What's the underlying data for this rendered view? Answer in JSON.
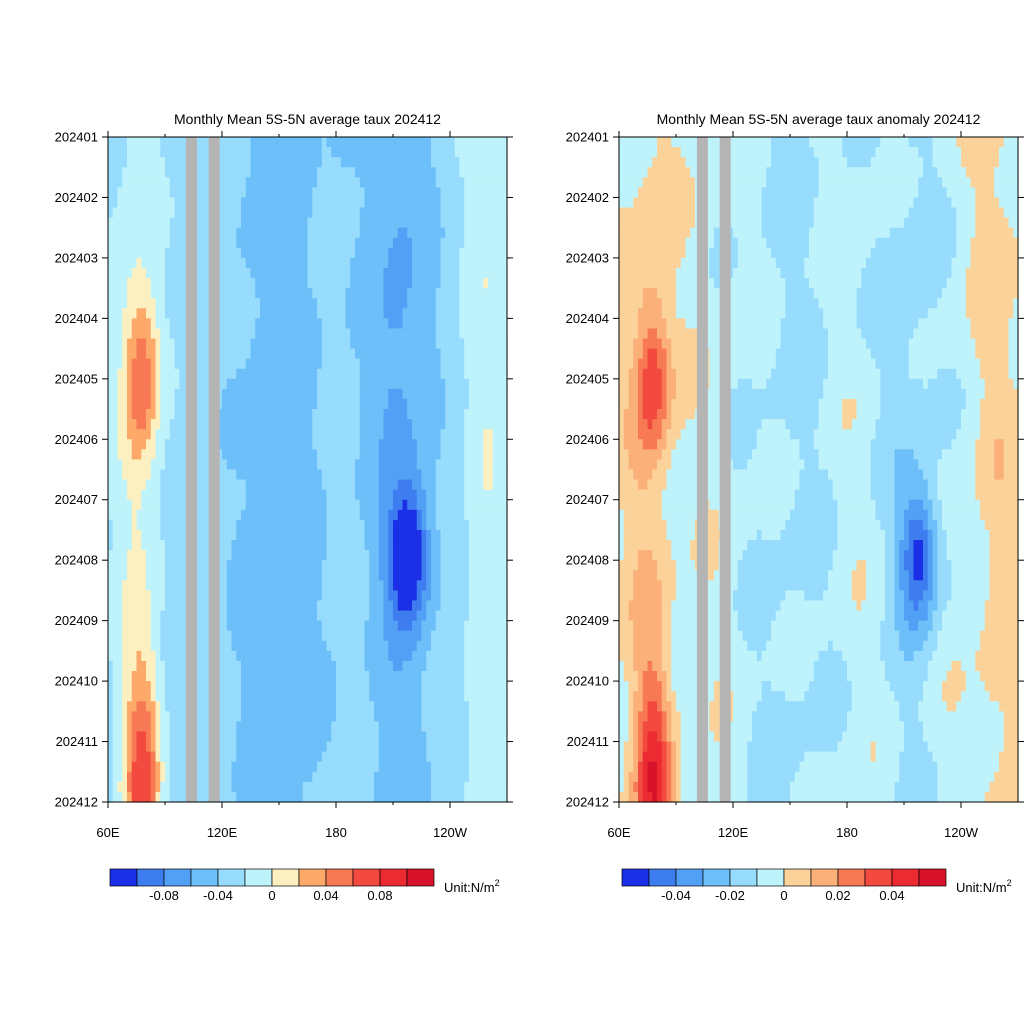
{
  "chart_data": [
    {
      "type": "heatmap",
      "title": "Monthly Mean 5S-5N average taux 202412",
      "y_ticks": [
        "202401",
        "202402",
        "202403",
        "202404",
        "202405",
        "202406",
        "202407",
        "202408",
        "202409",
        "202410",
        "202411",
        "202412"
      ],
      "x_ticks": [
        "60E",
        "120E",
        "180",
        "120W"
      ],
      "x_range": [
        60,
        270
      ],
      "colorbar": {
        "tick_labels": [
          "-0.08",
          "-0.04",
          "0",
          "0.04",
          "0.08"
        ],
        "tick_values": [
          -0.08,
          -0.04,
          0,
          0.04,
          0.08
        ],
        "levels": [
          -0.12,
          -0.1,
          -0.08,
          -0.06,
          -0.04,
          -0.02,
          0,
          0.02,
          0.04,
          0.06,
          0.08,
          0.1,
          0.12
        ],
        "colors": [
          "#1a2fe6",
          "#3e7df0",
          "#52a0f5",
          "#6cbff8",
          "#97dcfc",
          "#bff3fb",
          "#fdf0c0",
          "#fca96a",
          "#f77a55",
          "#f24a3e",
          "#ec2a32",
          "#d8122b"
        ],
        "unit_prefix": "Unit:N/m",
        "unit_sup": "2"
      }
    },
    {
      "type": "heatmap",
      "title": "Monthly Mean 5S-5N average taux anomaly 202412",
      "y_ticks": [
        "202401",
        "202402",
        "202403",
        "202404",
        "202405",
        "202406",
        "202407",
        "202408",
        "202409",
        "202410",
        "202411",
        "202412"
      ],
      "x_ticks": [
        "60E",
        "120E",
        "180",
        "120W"
      ],
      "x_range": [
        60,
        270
      ],
      "colorbar": {
        "tick_labels": [
          "-0.04",
          "-0.02",
          "0",
          "0.02",
          "0.04"
        ],
        "tick_values": [
          -0.04,
          -0.02,
          0,
          0.02,
          0.04
        ],
        "levels": [
          -0.06,
          -0.05,
          -0.04,
          -0.03,
          -0.02,
          -0.01,
          0,
          0.01,
          0.02,
          0.03,
          0.04,
          0.05,
          0.06
        ],
        "colors": [
          "#1a2fe6",
          "#3e7df0",
          "#52a0f5",
          "#6cbff8",
          "#97dcfc",
          "#bff3fb",
          "#fbd39a",
          "#fbb07a",
          "#f77a55",
          "#f24a3e",
          "#ec2a32",
          "#d8122b"
        ],
        "unit_prefix": "Unit:N/m",
        "unit_sup": "2"
      }
    }
  ]
}
